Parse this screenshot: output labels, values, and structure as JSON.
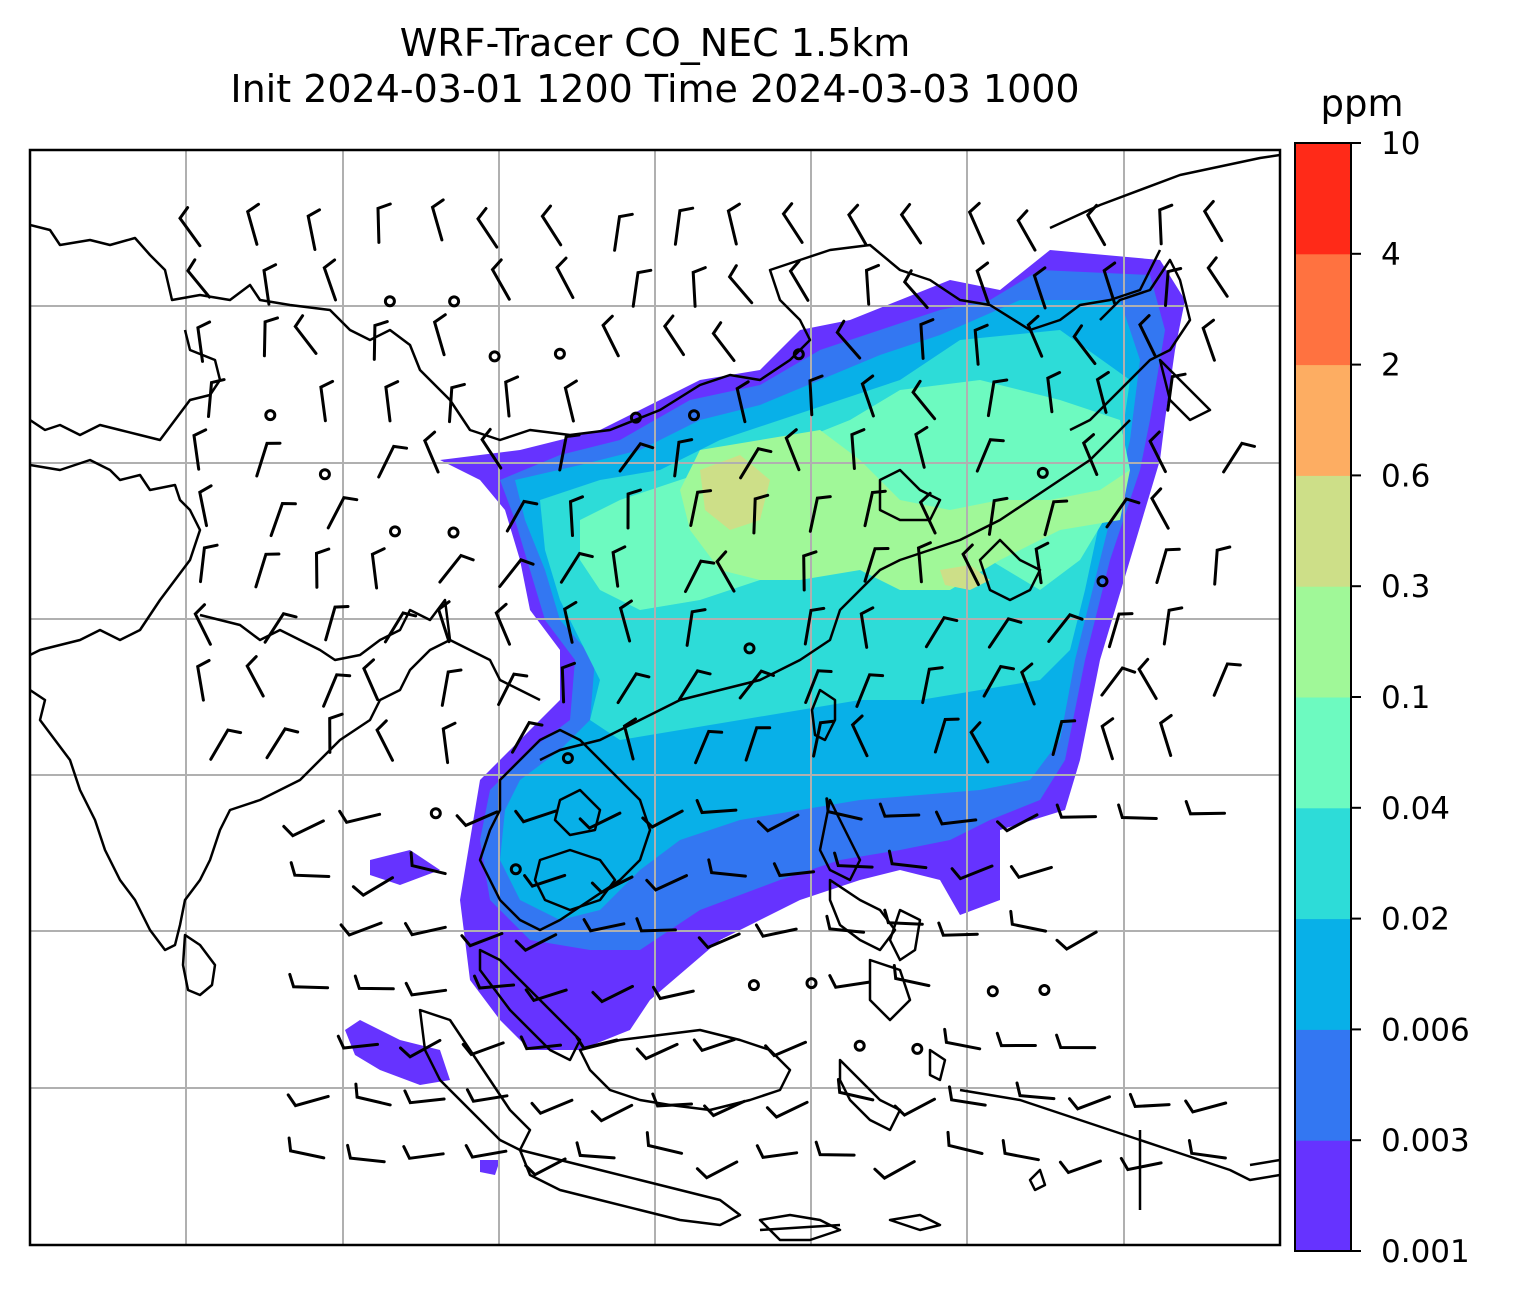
{
  "title": {
    "line1": "WRF-Tracer CO_NEC 1.5km",
    "line2": "Init 2024-03-01 1200 Time 2024-03-03 1000"
  },
  "colorbar": {
    "unit": "ppm",
    "ticks": [
      "0.001",
      "0.003",
      "0.006",
      "0.02",
      "0.04",
      "0.1",
      "0.3",
      "0.6",
      "2",
      "4",
      "10"
    ],
    "colors": [
      "#6633ff",
      "#3377f2",
      "#08b0e8",
      "#2ddcd8",
      "#6dfac0",
      "#a0f898",
      "#cddf88",
      "#fdad62",
      "#ff7240",
      "#ff2a18"
    ]
  },
  "map": {
    "gridlines": true,
    "barb_color": "#000000",
    "coastline_color": "#000000",
    "gridline_color": "#b0b0b0"
  }
}
